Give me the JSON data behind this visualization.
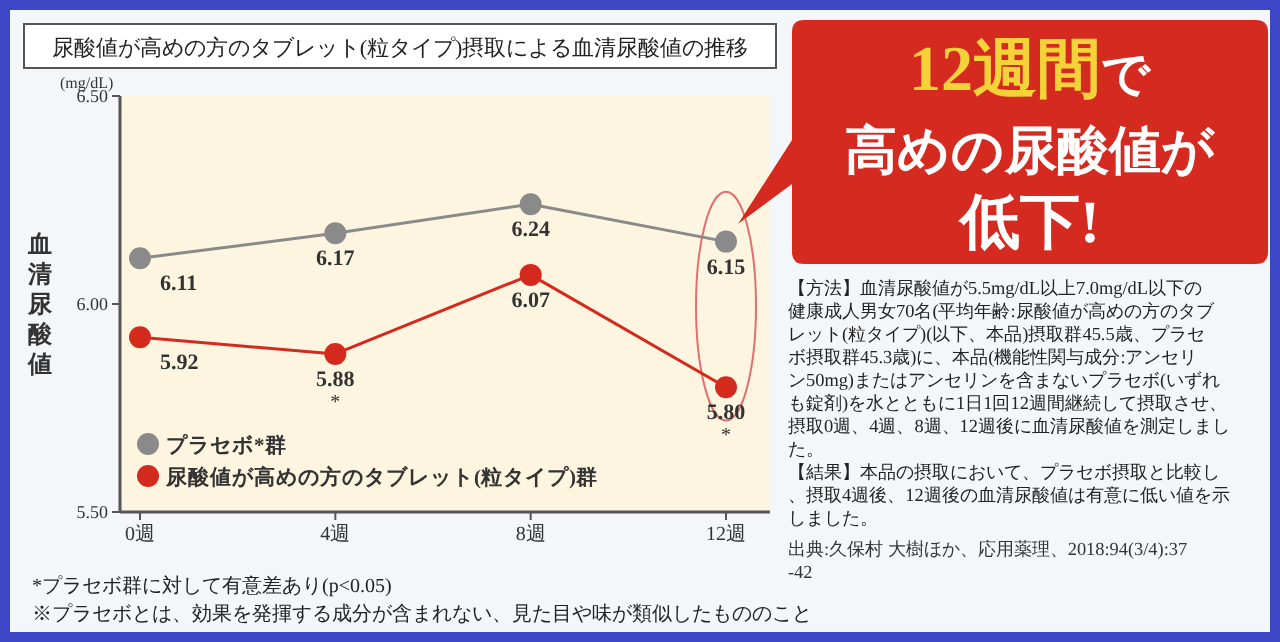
{
  "chart_data": {
    "type": "line",
    "title": "尿酸値が高めの方のタブレット(粒タイプ)摂取による血清尿酸値の推移",
    "ylabel": "血清尿酸値",
    "categories": [
      "0週",
      "4週",
      "8週",
      "12週"
    ],
    "series": [
      {
        "name": "プラセボ*群",
        "color": "#8a8a8a",
        "values": [
          6.11,
          6.17,
          6.24,
          6.15
        ],
        "value_labels": [
          "6.11",
          "6.17",
          "6.24",
          "6.15"
        ]
      },
      {
        "name": "尿酸値が高めの方のタブレット(粒タイプ)群",
        "color": "#d42a1e",
        "values": [
          5.92,
          5.88,
          6.07,
          5.8
        ],
        "value_labels": [
          "5.92",
          "5.88",
          "6.07",
          "5.80"
        ]
      }
    ],
    "ylim": [
      5.5,
      6.5
    ],
    "yticks": [
      {
        "value": 5.5,
        "label": "5.50"
      },
      {
        "value": 6,
        "label": "6.00"
      },
      {
        "value": 6.5,
        "label": "6.50"
      }
    ],
    "grid": false,
    "legend": "bottom left",
    "marker": "circle",
    "line_style": "solid",
    "annotations": [
      "(mg/dL)",
      "12週間で",
      "高めの尿酸値が",
      "低下!",
      "【方法】血清尿酸値が5.5mg/dL以上7.0mg/dL以下の健康成人男女70名(平均年齢:尿酸値が高めの方のタブレット(粒タイプ)(以下、本品)摂取群45.5歳、プラセボ摂取群45.3歳)に、本品(機能性関与成分:アンセリン50mg)またはアンセリンを含まないプラセボ(いずれも錠剤)を水とともに1日1回12週間継続して摂取させ、摂取0週、4週、8週、12週後に血清尿酸値を測定しました。",
      "【結果】本品の摂取において、プラセボ摂取と比較し、摂取4週後、12週後の血清尿酸値は有意に低い値を示しました。",
      "出典:久保村 大樹ほか、応用薬理、2018:94(3/4):37-42",
      "*プラセボ群に対して有意差あり(p<0.05)",
      "※プラセボとは、効果を発揮する成分が含まれない、見た目や味が類似したもののこと",
      {
        "text": "*",
        "x": "4週",
        "y": 5.88
      },
      {
        "text": "*",
        "x": "12週",
        "y": 5.8
      }
    ]
  }
}
